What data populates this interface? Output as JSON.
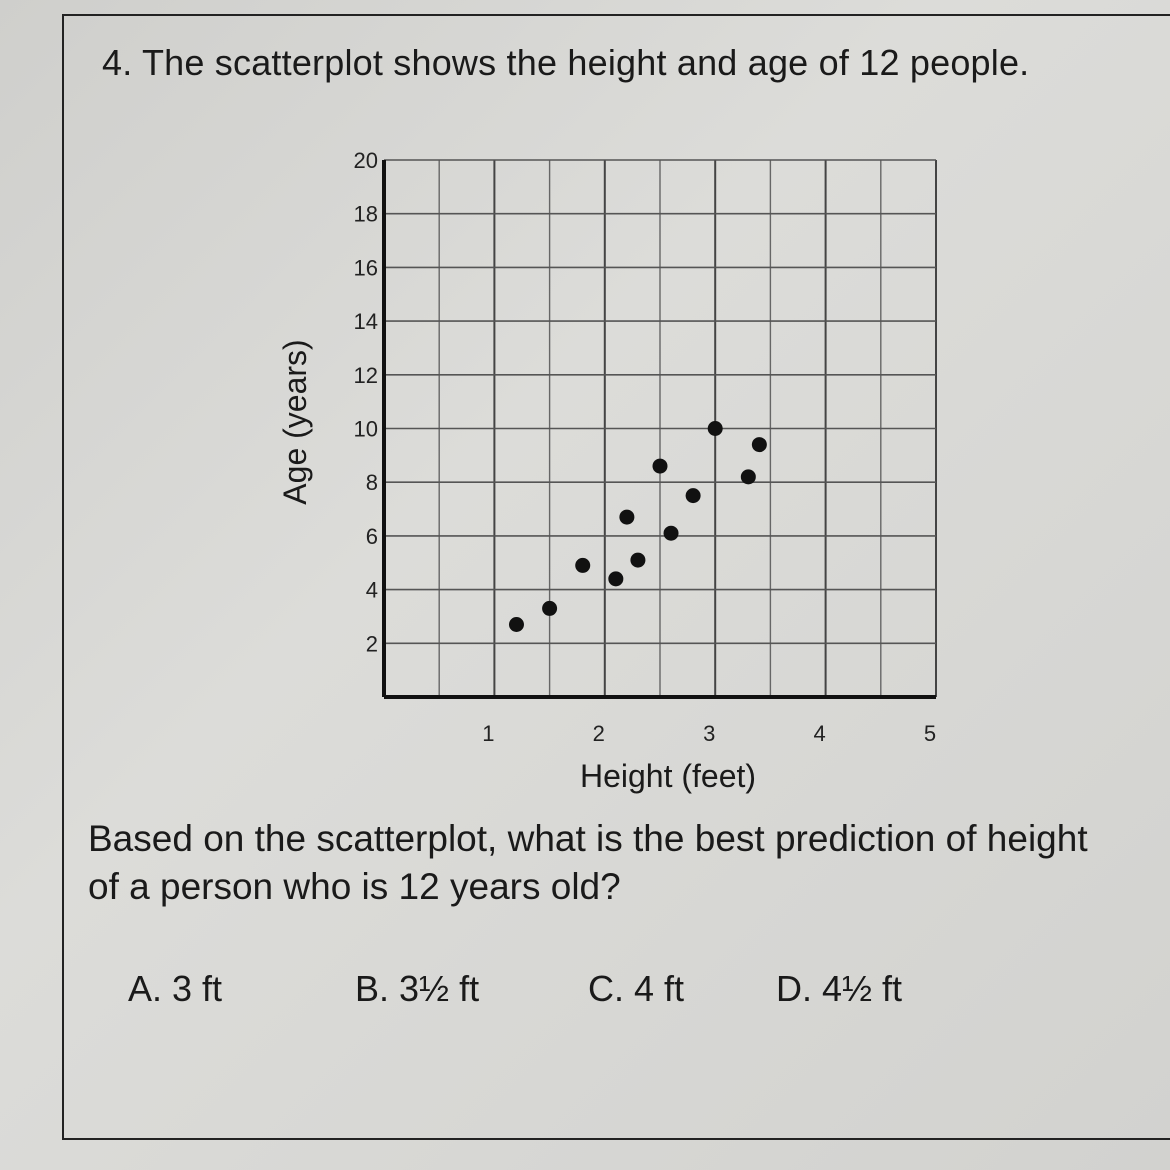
{
  "question": "4. The scatterplot shows the height and age of 12 people.",
  "prompt": "Based on the scatterplot, what is the best prediction of height of a person who is 12 years old?",
  "choices": [
    "A. 3 ft",
    "B. 3½ ft",
    "C. 4 ft",
    "D. 4½ ft"
  ],
  "chart_data": {
    "type": "scatter",
    "xlabel": "Height (feet)",
    "ylabel": "Age (years)",
    "xlim": [
      0,
      5
    ],
    "ylim": [
      0,
      20
    ],
    "xticks": [
      "1",
      "2",
      "3",
      "4",
      "5"
    ],
    "yticks": [
      "2",
      "4",
      "6",
      "8",
      "10",
      "12",
      "14",
      "16",
      "18",
      "20"
    ],
    "grid": true,
    "points": [
      {
        "x": 1.2,
        "y": 2.7
      },
      {
        "x": 1.5,
        "y": 3.3
      },
      {
        "x": 1.8,
        "y": 4.9
      },
      {
        "x": 2.1,
        "y": 4.4
      },
      {
        "x": 2.2,
        "y": 6.7
      },
      {
        "x": 2.3,
        "y": 5.1
      },
      {
        "x": 2.5,
        "y": 8.6
      },
      {
        "x": 2.6,
        "y": 6.1
      },
      {
        "x": 2.8,
        "y": 7.5
      },
      {
        "x": 3.0,
        "y": 10.0
      },
      {
        "x": 3.3,
        "y": 8.2
      },
      {
        "x": 3.4,
        "y": 9.4
      }
    ]
  }
}
